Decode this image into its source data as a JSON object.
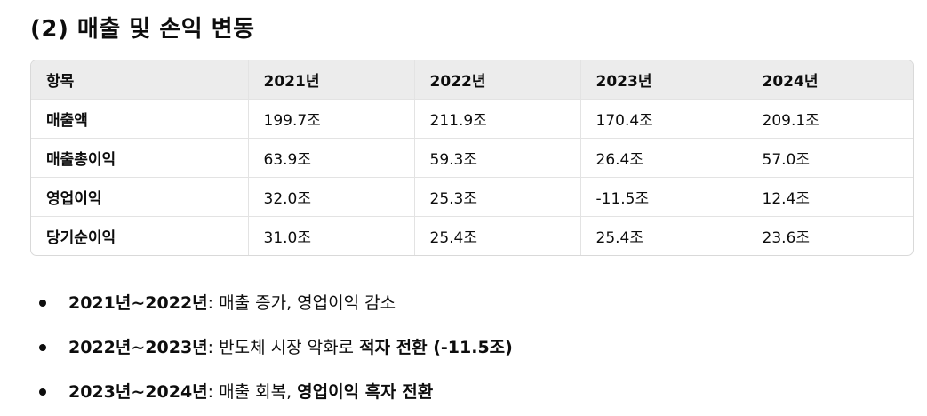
{
  "heading": "(2) 매출 및 손익 변동",
  "table": {
    "headers": [
      "항목",
      "2021년",
      "2022년",
      "2023년",
      "2024년"
    ],
    "rows": [
      {
        "label": "매출액",
        "values": [
          "199.7조",
          "211.9조",
          "170.4조",
          "209.1조"
        ]
      },
      {
        "label": "매출총이익",
        "values": [
          "63.9조",
          "59.3조",
          "26.4조",
          "57.0조"
        ]
      },
      {
        "label": "영업이익",
        "values": [
          "32.0조",
          "25.3조",
          "-11.5조",
          "12.4조"
        ]
      },
      {
        "label": "당기순이익",
        "values": [
          "31.0조",
          "25.4조",
          "25.4조",
          "23.6조"
        ]
      }
    ]
  },
  "bullets": [
    {
      "period": "2021년~2022년",
      "sep": ": ",
      "text": "매출 증가, 영업이익 감소",
      "emphasis": ""
    },
    {
      "period": "2022년~2023년",
      "sep": ": ",
      "text": "반도체 시장 악화로 ",
      "emphasis": "적자 전환 (-11.5조)"
    },
    {
      "period": "2023년~2024년",
      "sep": ": ",
      "text": "매출 회복, ",
      "emphasis": "영업이익 흑자 전환"
    }
  ]
}
